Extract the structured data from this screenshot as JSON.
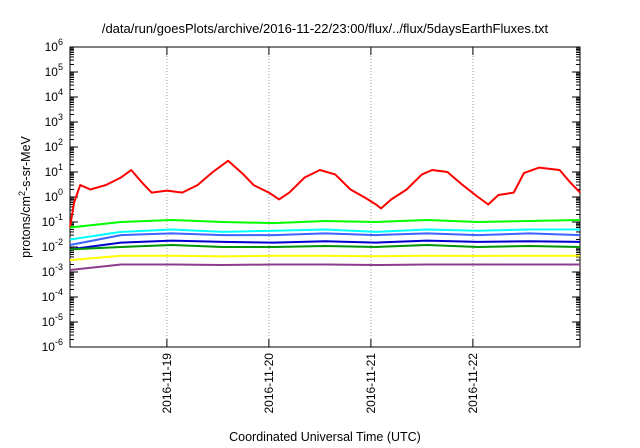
{
  "chart_data": {
    "type": "line",
    "title": "/data/run/goesPlots/archive/2016-11-22/23:00/flux/../flux/5daysEarthFluxes.txt",
    "xlabel": "Coordinated Universal Time (UTC)",
    "ylabel": "protons/cm²-s-sr-MeV",
    "ylabel_parts": {
      "pre": "protons/cm",
      "sup": "2",
      "post": "-s-sr-MeV"
    },
    "yscale": "log",
    "ylim_exp": [
      -6,
      6
    ],
    "y_ticks": [
      {
        "base": "10",
        "exp": "-6"
      },
      {
        "base": "10",
        "exp": "-5"
      },
      {
        "base": "10",
        "exp": "-4"
      },
      {
        "base": "10",
        "exp": "-3"
      },
      {
        "base": "10",
        "exp": "-2"
      },
      {
        "base": "10",
        "exp": "-1"
      },
      {
        "base": "10",
        "exp": "0"
      },
      {
        "base": "10",
        "exp": "1"
      },
      {
        "base": "10",
        "exp": "2"
      },
      {
        "base": "10",
        "exp": "3"
      },
      {
        "base": "10",
        "exp": "4"
      },
      {
        "base": "10",
        "exp": "5"
      },
      {
        "base": "10",
        "exp": "6"
      }
    ],
    "xlim_days": [
      0,
      5
    ],
    "x_ticks": [
      {
        "label": "2016-11-19",
        "day": 0.95
      },
      {
        "label": "2016-11-20",
        "day": 1.95
      },
      {
        "label": "2016-11-21",
        "day": 2.95
      },
      {
        "label": "2016-11-22",
        "day": 3.95
      }
    ],
    "grid": true,
    "series": [
      {
        "color": "#ff0000",
        "x": [
          0.0,
          0.04,
          0.1,
          0.2,
          0.35,
          0.5,
          0.6,
          0.7,
          0.8,
          0.95,
          1.1,
          1.25,
          1.4,
          1.55,
          1.7,
          1.8,
          1.95,
          2.05,
          2.15,
          2.3,
          2.45,
          2.6,
          2.75,
          2.9,
          3.0,
          3.05,
          3.15,
          3.3,
          3.45,
          3.55,
          3.7,
          3.85,
          4.0,
          4.1,
          4.2,
          4.35,
          4.45,
          4.6,
          4.8,
          4.9,
          5.0
        ],
        "y": [
          0.06,
          0.6,
          3,
          2,
          3,
          6,
          12,
          4,
          1.5,
          1.8,
          1.5,
          3,
          10,
          28,
          8,
          3,
          1.5,
          0.8,
          1.5,
          6,
          12,
          8,
          2,
          0.9,
          0.5,
          0.35,
          0.8,
          2,
          8,
          12,
          10,
          3,
          1,
          0.5,
          1.2,
          1.5,
          9,
          15,
          12,
          4,
          1.5
        ]
      },
      {
        "color": "#00ff00",
        "x": [
          0.0,
          0.5,
          1.0,
          1.5,
          2.0,
          2.5,
          3.0,
          3.5,
          4.0,
          4.5,
          5.0
        ],
        "y": [
          0.06,
          0.1,
          0.12,
          0.1,
          0.09,
          0.11,
          0.1,
          0.12,
          0.1,
          0.11,
          0.12
        ]
      },
      {
        "color": "#00ffff",
        "x": [
          0.0,
          0.5,
          1.0,
          1.5,
          2.0,
          2.5,
          3.0,
          3.5,
          4.0,
          4.5,
          5.0
        ],
        "y": [
          0.02,
          0.04,
          0.05,
          0.04,
          0.045,
          0.05,
          0.04,
          0.05,
          0.045,
          0.05,
          0.05
        ]
      },
      {
        "color": "#3c64ff",
        "x": [
          0.0,
          0.5,
          1.0,
          1.5,
          2.0,
          2.5,
          3.0,
          3.5,
          4.0,
          4.5,
          5.0
        ],
        "y": [
          0.012,
          0.03,
          0.035,
          0.03,
          0.03,
          0.035,
          0.03,
          0.035,
          0.03,
          0.035,
          0.03
        ]
      },
      {
        "color": "#0000cd",
        "x": [
          0.0,
          0.5,
          1.0,
          1.5,
          2.0,
          2.5,
          3.0,
          3.5,
          4.0,
          4.5,
          5.0
        ],
        "y": [
          0.008,
          0.015,
          0.018,
          0.016,
          0.015,
          0.017,
          0.015,
          0.018,
          0.016,
          0.017,
          0.016
        ]
      },
      {
        "color": "#009600",
        "x": [
          0.0,
          0.5,
          1.0,
          1.5,
          2.0,
          2.5,
          3.0,
          3.5,
          4.0,
          4.5,
          5.0
        ],
        "y": [
          0.008,
          0.01,
          0.012,
          0.01,
          0.01,
          0.011,
          0.01,
          0.012,
          0.01,
          0.011,
          0.01
        ]
      },
      {
        "color": "#ffff00",
        "x": [
          0.0,
          0.5,
          1.0,
          1.5,
          2.0,
          2.5,
          3.0,
          3.5,
          4.0,
          4.5,
          5.0
        ],
        "y": [
          0.003,
          0.0045,
          0.0045,
          0.0042,
          0.0045,
          0.0045,
          0.0043,
          0.0045,
          0.0044,
          0.0045,
          0.0045
        ]
      },
      {
        "color": "#8c3c8c",
        "x": [
          0.0,
          0.5,
          1.0,
          1.5,
          2.0,
          2.5,
          3.0,
          3.5,
          4.0,
          4.5,
          5.0
        ],
        "y": [
          0.0012,
          0.002,
          0.002,
          0.0019,
          0.002,
          0.002,
          0.0019,
          0.002,
          0.002,
          0.002,
          0.002
        ]
      }
    ]
  }
}
